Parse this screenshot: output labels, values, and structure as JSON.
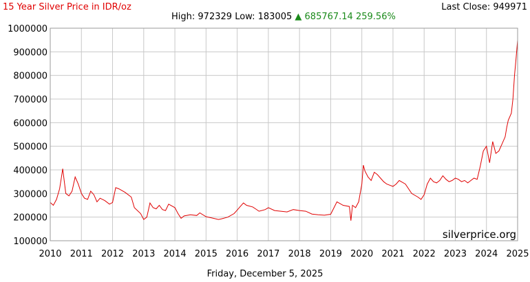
{
  "header": {
    "title": "15 Year Silver Price in IDR/oz",
    "last_close_label": "Last Close: 949971",
    "high_label": "High:",
    "high_value": "972329",
    "low_label": "Low:",
    "low_value": "183005",
    "change_arrow": "▲",
    "change_value": "685767.14",
    "change_percent": "259.56%"
  },
  "watermark": "silverprice.org",
  "footer_date": "Friday, December 5, 2025",
  "colors": {
    "line": "#e00000",
    "grid": "#c8c8c8",
    "up": "#1a8a1a",
    "title": "#e00000"
  },
  "chart_data": {
    "type": "line",
    "title": "15 Year Silver Price in IDR/oz",
    "xlabel": "",
    "ylabel": "",
    "xlim": [
      2010,
      2025
    ],
    "ylim": [
      100000,
      1000000
    ],
    "x_ticks": [
      "2010",
      "2011",
      "2012",
      "2013",
      "2014",
      "2015",
      "2016",
      "2017",
      "2018",
      "2019",
      "2020",
      "2021",
      "2022",
      "2023",
      "2024",
      "2025"
    ],
    "y_ticks": [
      "100000",
      "200000",
      "300000",
      "400000",
      "500000",
      "600000",
      "700000",
      "800000",
      "900000",
      "1000000"
    ],
    "grid": true,
    "series": [
      {
        "x": [
          2010.0,
          2010.1,
          2010.2,
          2010.3,
          2010.35,
          2010.4,
          2010.5,
          2010.6,
          2010.7,
          2010.8,
          2010.9,
          2011.0,
          2011.1,
          2011.2,
          2011.3,
          2011.4,
          2011.5,
          2011.6,
          2011.75,
          2011.9,
          2012.0,
          2012.1,
          2012.2,
          2012.4,
          2012.6,
          2012.7,
          2012.9,
          2013.0,
          2013.1,
          2013.2,
          2013.3,
          2013.4,
          2013.5,
          2013.6,
          2013.7,
          2013.8,
          2014.0,
          2014.1,
          2014.2,
          2014.3,
          2014.5,
          2014.7,
          2014.8,
          2015.0,
          2015.2,
          2015.4,
          2015.5,
          2015.7,
          2015.9,
          2016.0,
          2016.1,
          2016.2,
          2016.3,
          2016.5,
          2016.6,
          2016.7,
          2016.9,
          2017.0,
          2017.2,
          2017.4,
          2017.6,
          2017.8,
          2018.0,
          2018.2,
          2018.4,
          2018.6,
          2018.8,
          2019.0,
          2019.1,
          2019.2,
          2019.4,
          2019.6,
          2019.65,
          2019.7,
          2019.8,
          2019.9,
          2020.0,
          2020.05,
          2020.1,
          2020.2,
          2020.3,
          2020.4,
          2020.5,
          2020.6,
          2020.7,
          2020.8,
          2020.9,
          2021.0,
          2021.1,
          2021.2,
          2021.4,
          2021.6,
          2021.8,
          2021.9,
          2022.0,
          2022.1,
          2022.2,
          2022.3,
          2022.4,
          2022.5,
          2022.6,
          2022.7,
          2022.8,
          2022.9,
          2023.0,
          2023.1,
          2023.2,
          2023.3,
          2023.4,
          2023.5,
          2023.6,
          2023.7,
          2023.8,
          2023.9,
          2024.0,
          2024.1,
          2024.2,
          2024.3,
          2024.4,
          2024.5,
          2024.6,
          2024.65,
          2024.7,
          2024.8,
          2024.85,
          2024.9,
          2024.95,
          2025.0
        ],
        "y": [
          262000,
          250000,
          275000,
          320000,
          360000,
          405000,
          300000,
          290000,
          310000,
          370000,
          340000,
          300000,
          280000,
          275000,
          310000,
          295000,
          265000,
          280000,
          270000,
          255000,
          262000,
          325000,
          320000,
          305000,
          285000,
          240000,
          215000,
          190000,
          200000,
          260000,
          240000,
          235000,
          250000,
          232000,
          228000,
          255000,
          240000,
          215000,
          195000,
          205000,
          210000,
          207000,
          218000,
          202000,
          196000,
          190000,
          193000,
          200000,
          215000,
          230000,
          245000,
          260000,
          250000,
          243000,
          234000,
          225000,
          232000,
          240000,
          228000,
          225000,
          222000,
          232000,
          228000,
          225000,
          213000,
          210000,
          208000,
          212000,
          238000,
          265000,
          250000,
          245000,
          185000,
          250000,
          240000,
          265000,
          340000,
          420000,
          395000,
          370000,
          355000,
          390000,
          380000,
          365000,
          350000,
          340000,
          335000,
          330000,
          340000,
          355000,
          340000,
          300000,
          285000,
          275000,
          295000,
          340000,
          365000,
          350000,
          345000,
          355000,
          375000,
          360000,
          350000,
          355000,
          365000,
          360000,
          350000,
          355000,
          345000,
          355000,
          365000,
          360000,
          415000,
          480000,
          500000,
          430000,
          520000,
          470000,
          480000,
          510000,
          540000,
          580000,
          610000,
          640000,
          700000,
          800000,
          870000,
          949971
        ]
      }
    ]
  }
}
